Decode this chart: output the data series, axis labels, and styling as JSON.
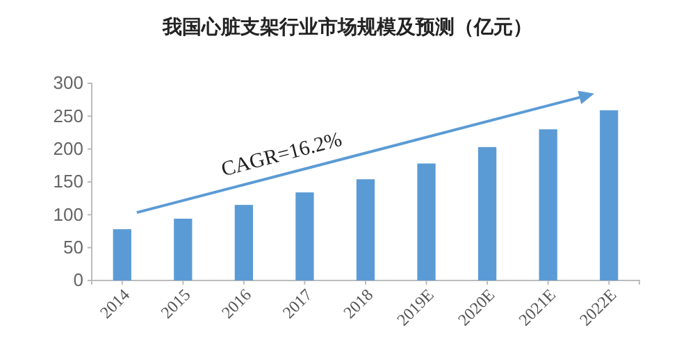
{
  "chart_data": {
    "type": "bar",
    "title": "我国心脏支架行业市场规模及预测（亿元）",
    "categories": [
      "2014",
      "2015",
      "2016",
      "2017",
      "2018",
      "2019E",
      "2020E",
      "2021E",
      "2022E"
    ],
    "values": [
      78,
      94,
      115,
      134,
      154,
      178,
      203,
      230,
      259
    ],
    "color": "#5b9bd5",
    "ylim": [
      0,
      300
    ],
    "yticks": [
      0,
      50,
      100,
      150,
      200,
      250,
      300
    ],
    "grid": false,
    "annotations": [
      "CAGR=16.2%"
    ]
  }
}
